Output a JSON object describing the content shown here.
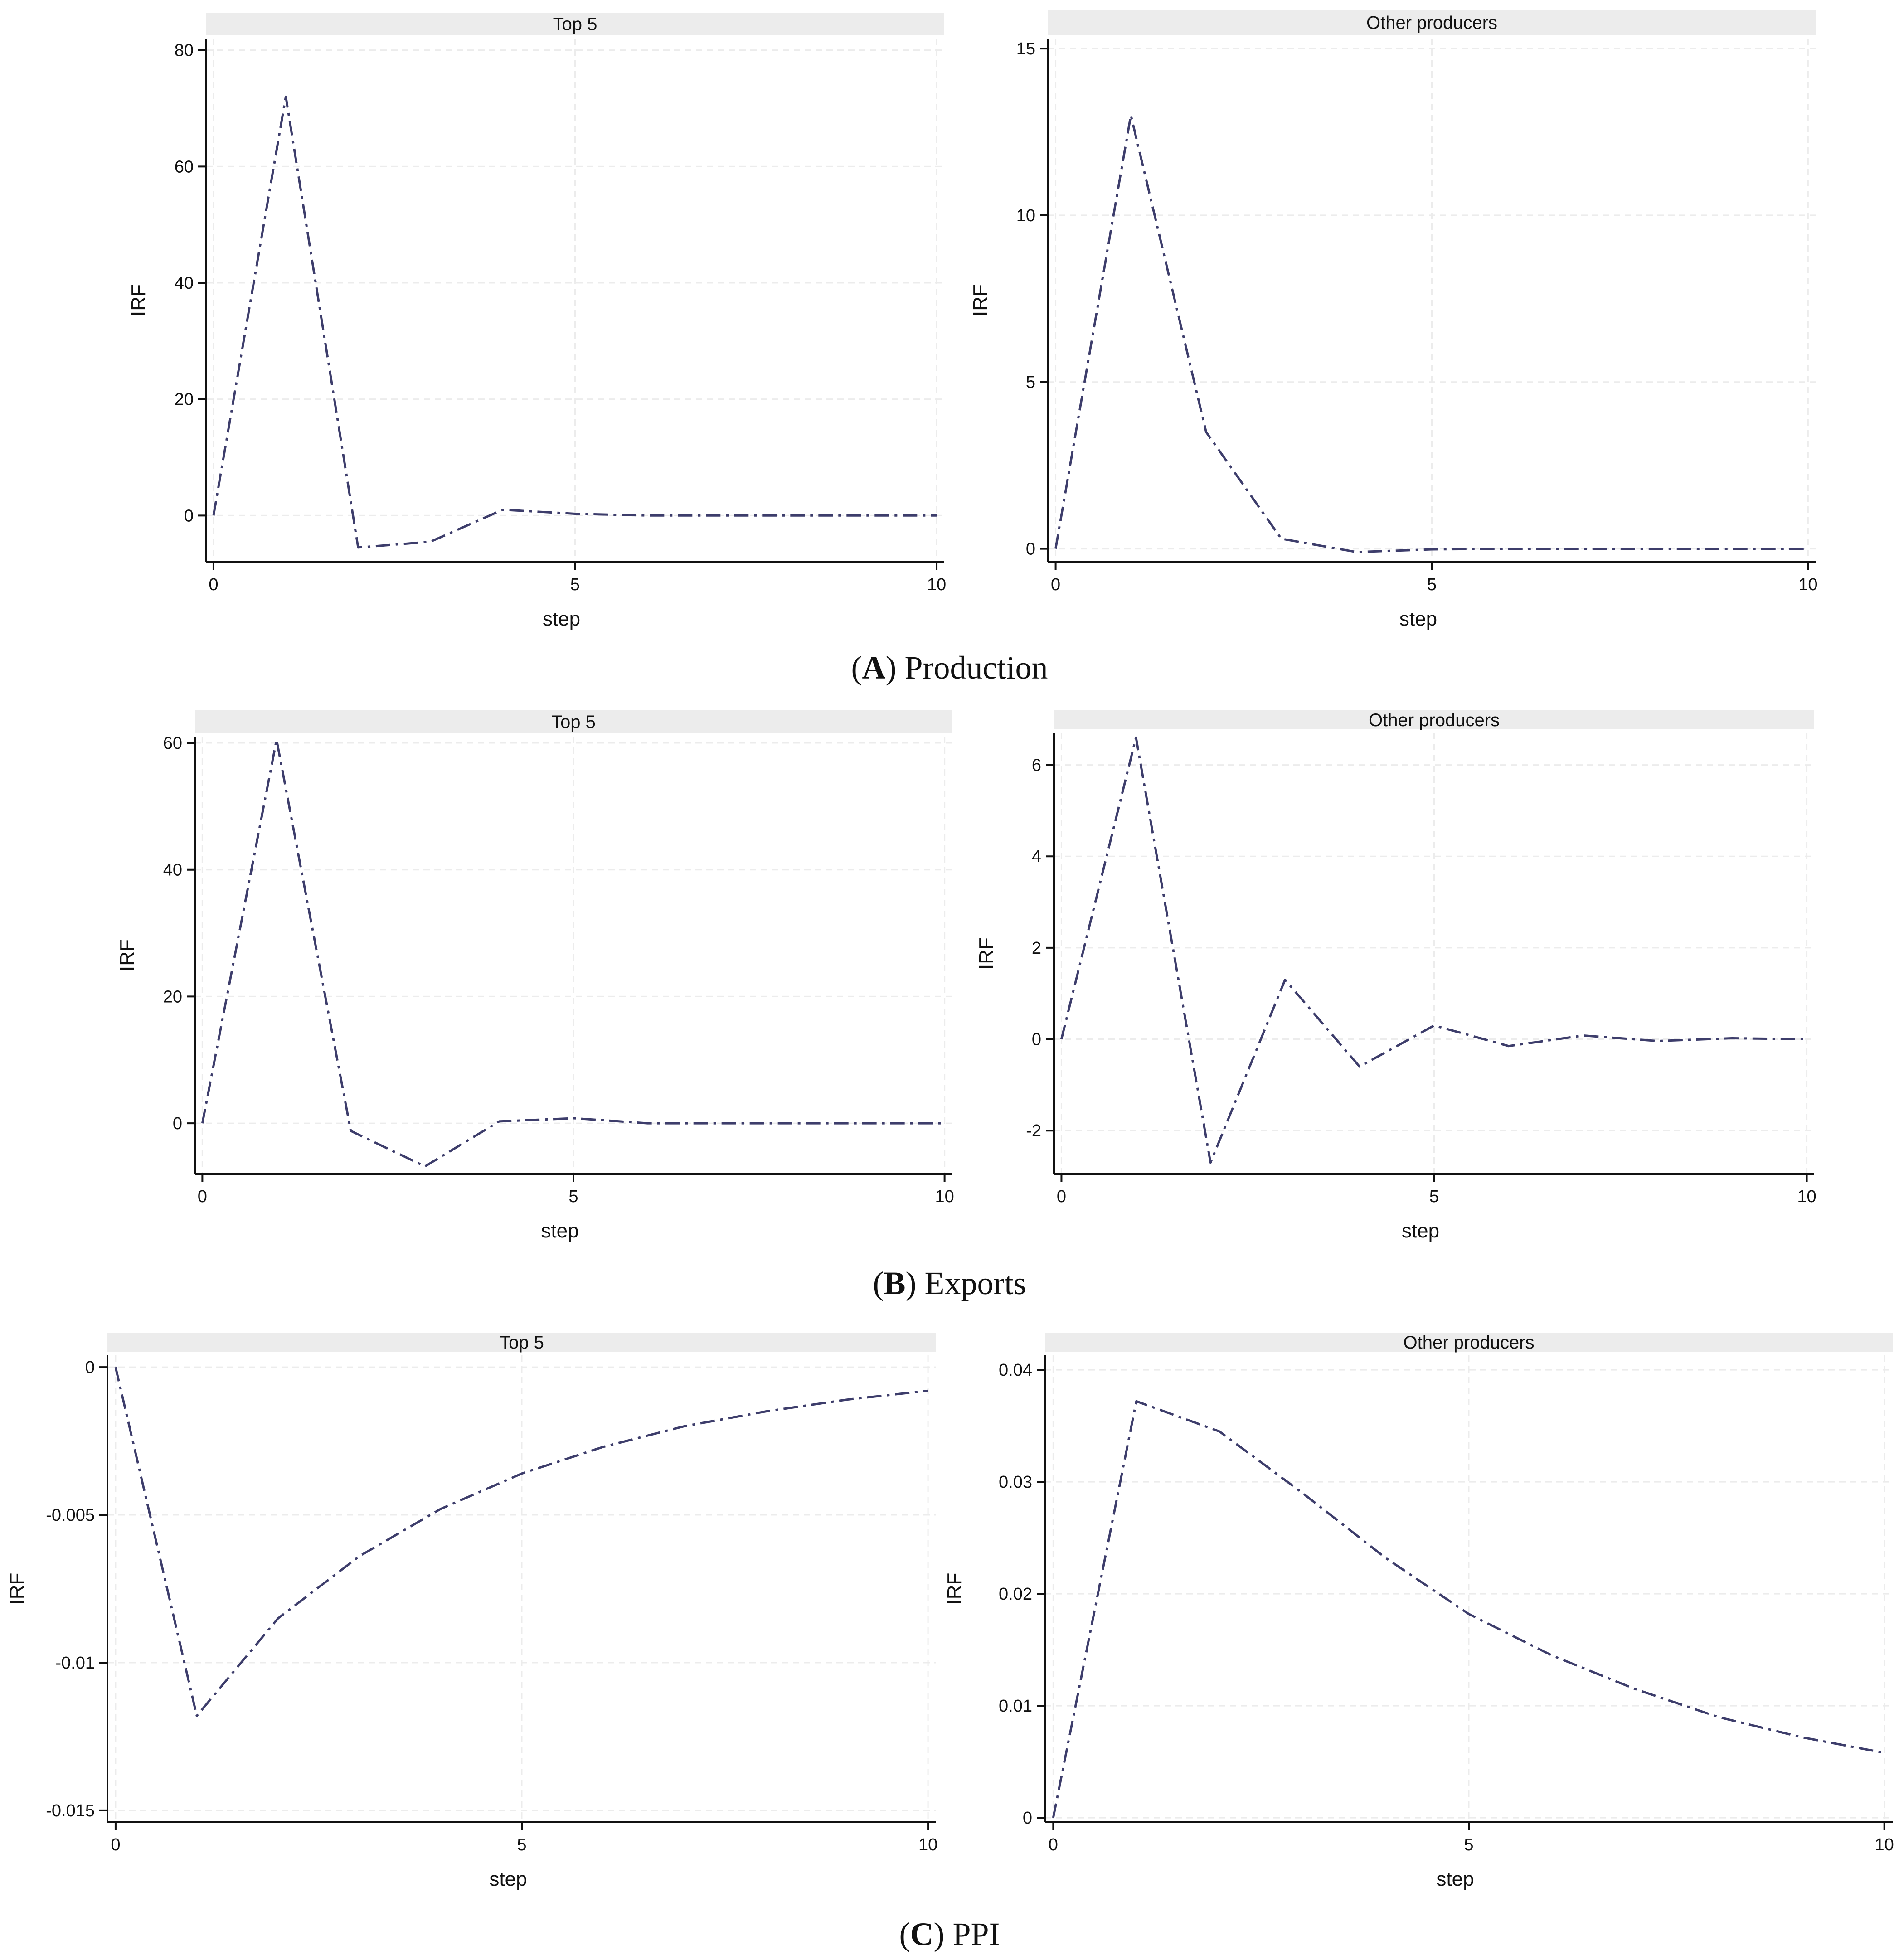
{
  "panels": [
    {
      "letter": "A",
      "label": "Production"
    },
    {
      "letter": "B",
      "label": "Exports"
    },
    {
      "letter": "C",
      "label": "PPI"
    }
  ],
  "colors": {
    "line": "#3d3d6b",
    "header_bg": "#ececec",
    "grid": "#ececec",
    "axis": "#111111"
  },
  "chart_data": [
    {
      "type": "line",
      "panel": "A",
      "title": "Top 5",
      "xlabel": "step",
      "ylabel": "IRF",
      "x": [
        0,
        1,
        2,
        3,
        4,
        5,
        6,
        7,
        8,
        9,
        10
      ],
      "values": [
        0,
        72,
        -5.5,
        -4.5,
        1,
        0.3,
        0,
        0,
        0,
        0,
        0
      ],
      "xlim": [
        -0.1,
        10.1
      ],
      "ylim": [
        -8,
        82
      ],
      "xticks": [
        0,
        5,
        10
      ],
      "xtick_labels": [
        "0",
        "5",
        "10"
      ],
      "yticks": [
        0,
        20,
        40,
        60,
        80
      ],
      "ytick_labels": [
        "0",
        "20",
        "40",
        "60",
        "80"
      ]
    },
    {
      "type": "line",
      "panel": "A",
      "title": "Other producers",
      "xlabel": "step",
      "ylabel": "IRF",
      "x": [
        0,
        1,
        2,
        3,
        4,
        5,
        6,
        7,
        8,
        9,
        10
      ],
      "values": [
        0,
        13,
        3.5,
        0.3,
        -0.1,
        -0.02,
        0,
        0,
        0,
        0,
        0
      ],
      "xlim": [
        -0.1,
        10.1
      ],
      "ylim": [
        -0.4,
        15.3
      ],
      "xticks": [
        0,
        5,
        10
      ],
      "xtick_labels": [
        "0",
        "5",
        "10"
      ],
      "yticks": [
        0,
        5,
        10,
        15
      ],
      "ytick_labels": [
        "0",
        "5",
        "10",
        "15"
      ]
    },
    {
      "type": "line",
      "panel": "B",
      "title": "Top 5",
      "xlabel": "step",
      "ylabel": "IRF",
      "x": [
        0,
        1,
        2,
        3,
        4,
        5,
        6,
        7,
        8,
        9,
        10
      ],
      "values": [
        0,
        60.5,
        -1.2,
        -6.8,
        0.3,
        0.8,
        0,
        0,
        0,
        0,
        0
      ],
      "xlim": [
        -0.1,
        10.1
      ],
      "ylim": [
        -8,
        61
      ],
      "xticks": [
        0,
        5,
        10
      ],
      "xtick_labels": [
        "0",
        "5",
        "10"
      ],
      "yticks": [
        0,
        20,
        40,
        60
      ],
      "ytick_labels": [
        "0",
        "20",
        "40",
        "60"
      ]
    },
    {
      "type": "line",
      "panel": "B",
      "title": "Other producers",
      "xlabel": "step",
      "ylabel": "IRF",
      "x": [
        0,
        1,
        2,
        3,
        4,
        5,
        6,
        7,
        8,
        9,
        10
      ],
      "values": [
        0,
        6.6,
        -2.7,
        1.3,
        -0.6,
        0.3,
        -0.15,
        0.08,
        -0.04,
        0.02,
        0
      ],
      "xlim": [
        -0.1,
        10.1
      ],
      "ylim": [
        -2.95,
        6.7
      ],
      "xticks": [
        0,
        5,
        10
      ],
      "xtick_labels": [
        "0",
        "5",
        "10"
      ],
      "yticks": [
        -2,
        0,
        2,
        4,
        6
      ],
      "ytick_labels": [
        "-2",
        "0",
        "2",
        "4",
        "6"
      ]
    },
    {
      "type": "line",
      "panel": "C",
      "title": "Top 5",
      "xlabel": "step",
      "ylabel": "IRF",
      "x": [
        0,
        1,
        2,
        3,
        4,
        5,
        6,
        7,
        8,
        9,
        10
      ],
      "values": [
        0,
        -0.0118,
        -0.0085,
        -0.0064,
        -0.0048,
        -0.0036,
        -0.0027,
        -0.002,
        -0.0015,
        -0.0011,
        -0.0008
      ],
      "xlim": [
        -0.1,
        10.1
      ],
      "ylim": [
        -0.0154,
        0.0004
      ],
      "xticks": [
        0,
        5,
        10
      ],
      "xtick_labels": [
        "0",
        "5",
        "10"
      ],
      "yticks": [
        -0.015,
        -0.01,
        -0.005,
        0
      ],
      "ytick_labels": [
        "-0.015",
        "-0.01",
        "-0.005",
        "0"
      ]
    },
    {
      "type": "line",
      "panel": "C",
      "title": "Other producers",
      "xlabel": "step",
      "ylabel": "IRF",
      "x": [
        0,
        1,
        2,
        3,
        4,
        5,
        6,
        7,
        8,
        9,
        10
      ],
      "values": [
        0,
        0.0372,
        0.0345,
        0.029,
        0.0232,
        0.0182,
        0.0145,
        0.0115,
        0.009,
        0.0072,
        0.0058
      ],
      "xlim": [
        -0.1,
        10.1
      ],
      "ylim": [
        -0.0004,
        0.0413
      ],
      "xticks": [
        0,
        5,
        10
      ],
      "xtick_labels": [
        "0",
        "5",
        "10"
      ],
      "yticks": [
        0,
        0.01,
        0.02,
        0.03,
        0.04
      ],
      "ytick_labels": [
        "0",
        "0.01",
        "0.02",
        "0.03",
        "0.04"
      ]
    }
  ]
}
